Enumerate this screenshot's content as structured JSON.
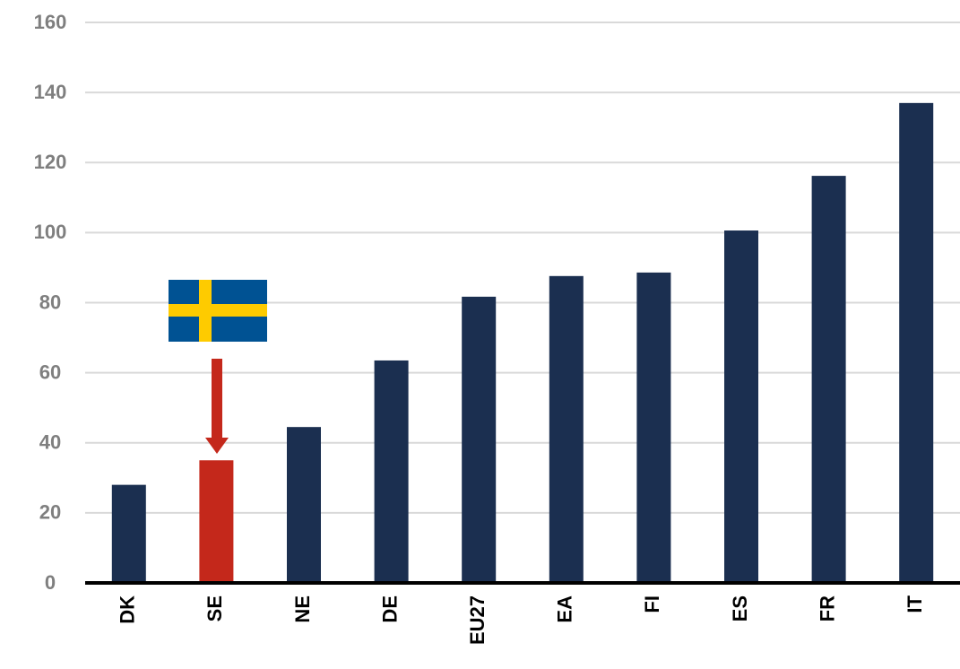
{
  "chart_data": {
    "type": "bar",
    "categories": [
      "DK",
      "SE",
      "NE",
      "DE",
      "EU27",
      "EA",
      "FI",
      "ES",
      "FR",
      "IT"
    ],
    "values": [
      28,
      35,
      44.5,
      63.5,
      81.7,
      87.6,
      88.6,
      100.6,
      116.2,
      137
    ],
    "colors": [
      "#1b2f50",
      "#c4281b",
      "#1b2f50",
      "#1b2f50",
      "#1b2f50",
      "#1b2f50",
      "#1b2f50",
      "#1b2f50",
      "#1b2f50",
      "#1b2f50"
    ],
    "ylim": [
      0,
      160
    ],
    "yticks": [
      0,
      20,
      40,
      60,
      80,
      100,
      120,
      140,
      160
    ],
    "grid": true
  }
}
